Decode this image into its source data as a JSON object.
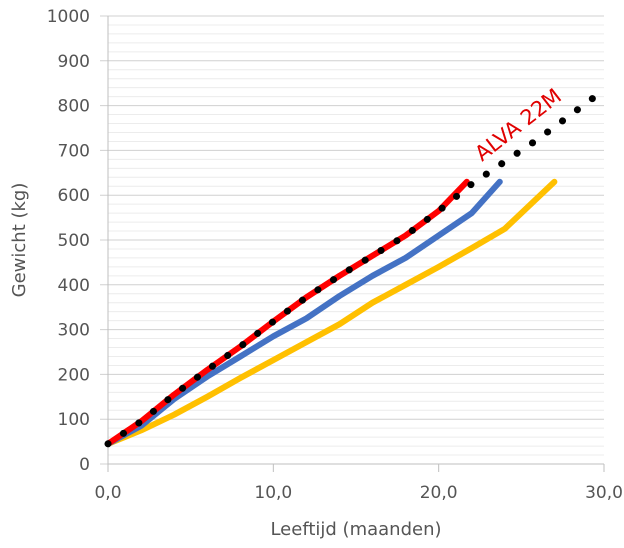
{
  "chart_data": {
    "type": "line",
    "xlabel": "Leeftijd (maanden)",
    "ylabel": "Gewicht (kg)",
    "xlim": [
      0,
      30
    ],
    "ylim": [
      0,
      1000
    ],
    "x_ticks": [
      "0,0",
      "10,0",
      "20,0",
      "30,0"
    ],
    "y_ticks": [
      "0",
      "100",
      "200",
      "300",
      "400",
      "500",
      "600",
      "700",
      "800",
      "900",
      "1000"
    ],
    "grid": true,
    "annotation": "ALVA 22M",
    "series": [
      {
        "color": "#ffc000",
        "style": "solid",
        "points": [
          [
            0,
            45
          ],
          [
            2,
            75
          ],
          [
            4,
            110
          ],
          [
            6,
            150
          ],
          [
            8,
            192
          ],
          [
            10,
            232
          ],
          [
            12,
            272
          ],
          [
            14,
            312
          ],
          [
            16,
            360
          ],
          [
            18,
            400
          ],
          [
            20,
            440
          ],
          [
            22,
            482
          ],
          [
            24,
            525
          ],
          [
            27,
            630
          ]
        ]
      },
      {
        "color": "#4472c4",
        "style": "solid",
        "points": [
          [
            0,
            45
          ],
          [
            2,
            85
          ],
          [
            4,
            145
          ],
          [
            6,
            195
          ],
          [
            8,
            240
          ],
          [
            10,
            285
          ],
          [
            12,
            325
          ],
          [
            14,
            375
          ],
          [
            16,
            420
          ],
          [
            18,
            460
          ],
          [
            20,
            510
          ],
          [
            22,
            560
          ],
          [
            23.7,
            630
          ]
        ]
      },
      {
        "color": "#ff0000",
        "style": "solid",
        "points": [
          [
            0,
            45
          ],
          [
            2,
            95
          ],
          [
            4,
            155
          ],
          [
            6,
            210
          ],
          [
            8,
            262
          ],
          [
            10,
            318
          ],
          [
            12,
            372
          ],
          [
            14,
            420
          ],
          [
            16,
            465
          ],
          [
            18,
            510
          ],
          [
            20,
            565
          ],
          [
            21.7,
            630
          ]
        ]
      },
      {
        "color": "#000000",
        "style": "dotted",
        "points": [
          [
            0,
            45
          ],
          [
            2,
            95
          ],
          [
            4,
            155
          ],
          [
            6,
            210
          ],
          [
            8,
            262
          ],
          [
            10,
            318
          ],
          [
            12,
            372
          ],
          [
            14,
            420
          ],
          [
            16,
            465
          ],
          [
            18,
            510
          ],
          [
            20,
            565
          ],
          [
            22,
            625
          ],
          [
            24,
            675
          ],
          [
            26,
            725
          ],
          [
            28,
            780
          ],
          [
            30,
            835
          ]
        ]
      }
    ]
  }
}
